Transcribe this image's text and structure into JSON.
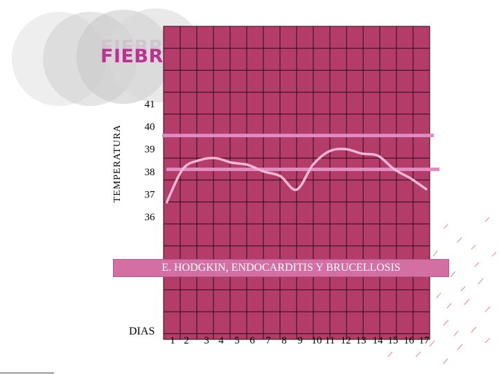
{
  "title": "FIEBRE ONDULANTE",
  "title_shadow": "FIEBRE ONDULANTE",
  "banner_text": "E. HODGKIN, ENDOCARDITIS Y BRUCELLOSIS",
  "x_axis_prefix": "DIAS",
  "colors": {
    "grid_fill": "#b33c68",
    "grid_line": "#2a0a16",
    "curve": "#f7b8d8",
    "reference_line": "#e08cc0",
    "banner": "#d46fa3"
  },
  "chart_data": {
    "type": "line",
    "title": "FIEBRE ONDULANTE",
    "xlabel": "DIAS",
    "ylabel": "TEMPERATURA",
    "x": [
      1,
      2,
      3,
      4,
      5,
      6,
      7,
      8,
      9,
      10,
      11,
      12,
      13,
      14,
      15,
      16,
      17
    ],
    "x_tick_labels": [
      "1",
      "2",
      "3",
      "4",
      "5",
      "6",
      "7",
      "8",
      "9",
      "10",
      "11",
      "12",
      "13",
      "14",
      "15",
      "16",
      "17"
    ],
    "y_tick_labels": [
      "36",
      "37",
      "38",
      "39",
      "40",
      "41"
    ],
    "yticks": [
      36,
      37,
      38,
      39,
      40,
      41
    ],
    "ylim": [
      36,
      41
    ],
    "series": [
      {
        "values": [
          36.6,
          38.1,
          38.5,
          38.6,
          38.4,
          38.3,
          38.0,
          37.8,
          37.2,
          38.3,
          38.9,
          39.0,
          38.8,
          38.7,
          38.1,
          37.7,
          37.2
        ]
      }
    ],
    "reference_lines": [
      39.6,
      38.1
    ],
    "grid": true
  }
}
